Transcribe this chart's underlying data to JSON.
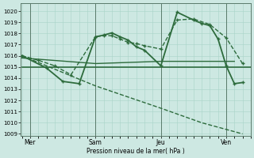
{
  "bg_color": "#cde8e2",
  "line_color": "#2d6b3c",
  "grid_color": "#a8d4c8",
  "vline_color": "#5a7a6a",
  "xlabel": "Pression niveau de la mer( hPa )",
  "ylim": [
    1008.8,
    1020.7
  ],
  "yticks": [
    1009,
    1010,
    1011,
    1012,
    1013,
    1014,
    1015,
    1016,
    1017,
    1018,
    1019,
    1020
  ],
  "xlim": [
    -0.2,
    28.0
  ],
  "xtick_pos": [
    1,
    9,
    17,
    25
  ],
  "xtick_labels": [
    "Mer",
    "Sam",
    "Jeu",
    "Ven"
  ],
  "vlines": [
    1,
    9,
    17,
    25
  ],
  "series": [
    {
      "name": "flat_line_1",
      "x": [
        0,
        28
      ],
      "y": [
        1015.0,
        1015.0
      ],
      "marker": false,
      "lw": 1.2,
      "ls": "-",
      "ms": 3
    },
    {
      "name": "flat_line_2_rising",
      "x": [
        0,
        9,
        17,
        26
      ],
      "y": [
        1015.8,
        1015.3,
        1015.5,
        1015.5
      ],
      "marker": false,
      "lw": 1.0,
      "ls": "-",
      "ms": 3
    },
    {
      "name": "dashed_upper_with_markers",
      "x": [
        0,
        2,
        4,
        6,
        9,
        10,
        11,
        12,
        13,
        14,
        15,
        17,
        19,
        21,
        23,
        25,
        27
      ],
      "y": [
        1016.0,
        1015.6,
        1015.1,
        1014.3,
        1017.7,
        1017.8,
        1017.8,
        1017.5,
        1017.2,
        1017.1,
        1016.9,
        1016.6,
        1019.2,
        1019.3,
        1018.8,
        1017.6,
        1015.3
      ],
      "marker": true,
      "lw": 1.0,
      "ls": "--",
      "ms": 3.5
    },
    {
      "name": "main_solid_with_markers",
      "x": [
        0,
        3,
        5,
        7,
        9,
        10,
        11,
        12,
        13,
        14,
        15,
        17,
        19,
        21,
        22,
        23,
        24,
        25,
        26,
        27
      ],
      "y": [
        1016.0,
        1014.9,
        1013.7,
        1013.5,
        1017.7,
        1017.85,
        1018.05,
        1017.7,
        1017.4,
        1016.8,
        1016.5,
        1015.1,
        1019.9,
        1019.2,
        1018.9,
        1018.7,
        1017.5,
        1015.1,
        1013.5,
        1013.6
      ],
      "marker": true,
      "lw": 1.3,
      "ls": "-",
      "ms": 3.5
    },
    {
      "name": "dashed_downtrend",
      "x": [
        0,
        5,
        9,
        17,
        22,
        25,
        27
      ],
      "y": [
        1016.0,
        1014.5,
        1013.3,
        1011.3,
        1010.0,
        1009.4,
        1009.0
      ],
      "marker": false,
      "lw": 1.0,
      "ls": "--",
      "ms": 3
    }
  ]
}
